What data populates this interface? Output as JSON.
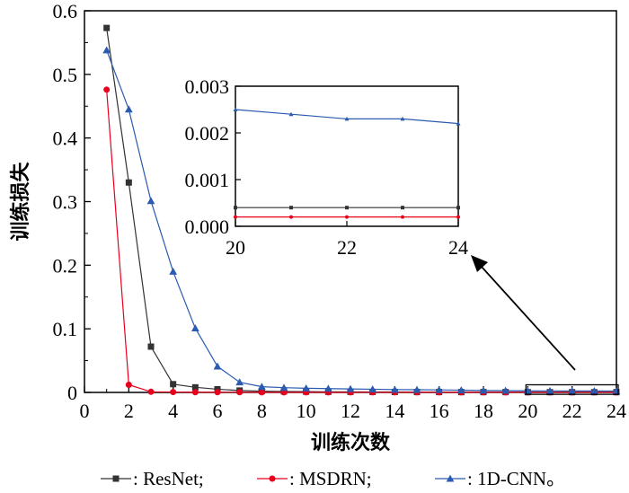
{
  "chart_data": {
    "type": "line",
    "xlabel": "训练次数",
    "ylabel": "训练损失",
    "xlim": [
      0,
      24
    ],
    "ylim": [
      0,
      0.6
    ],
    "xticks": [
      "0",
      "2",
      "4",
      "6",
      "8",
      "10",
      "12",
      "14",
      "16",
      "18",
      "20",
      "22",
      "24"
    ],
    "yticks": [
      "0",
      "0.1",
      "0.2",
      "0.3",
      "0.4",
      "0.5",
      "0.6"
    ],
    "x": [
      1,
      2,
      3,
      4,
      5,
      6,
      7,
      8,
      9,
      10,
      11,
      12,
      13,
      14,
      15,
      16,
      17,
      18,
      19,
      20,
      21,
      22,
      23,
      24
    ],
    "series": [
      {
        "name": ": ResNet;",
        "color": "#333333",
        "marker": "square",
        "values": [
          0.573,
          0.33,
          0.072,
          0.013,
          0.008,
          0.005,
          0.003,
          0.002,
          0.0015,
          0.0012,
          0.001,
          0.0009,
          0.0008,
          0.0007,
          0.0006,
          0.0006,
          0.0005,
          0.0005,
          0.0005,
          0.0004,
          0.0004,
          0.0004,
          0.0004,
          0.0004
        ]
      },
      {
        "name": ": MSDRN;",
        "color": "#e8001c",
        "marker": "circle",
        "values": [
          0.476,
          0.012,
          0.001,
          0.0006,
          0.0004,
          0.0003,
          0.0003,
          0.0002,
          0.0002,
          0.0002,
          0.0002,
          0.0002,
          0.0002,
          0.0002,
          0.0002,
          0.0002,
          0.0002,
          0.0002,
          0.0002,
          0.0002,
          0.0002,
          0.0002,
          0.0002,
          0.0002
        ]
      },
      {
        "name": ": 1D-CNN。",
        "color": "#2a5bb0",
        "marker": "triangle",
        "values": [
          0.538,
          0.445,
          0.301,
          0.19,
          0.101,
          0.041,
          0.016,
          0.009,
          0.0075,
          0.0065,
          0.006,
          0.0055,
          0.005,
          0.0045,
          0.0042,
          0.004,
          0.0035,
          0.003,
          0.0028,
          0.0025,
          0.0024,
          0.0023,
          0.0023,
          0.0022
        ]
      }
    ],
    "inset": {
      "xlim": [
        20,
        24
      ],
      "ylim": [
        0,
        0.003
      ],
      "xticks": [
        "20",
        "22",
        "24"
      ],
      "yticks": [
        "0.000",
        "0.001",
        "0.002",
        "0.003"
      ]
    },
    "legend": "bottom"
  }
}
